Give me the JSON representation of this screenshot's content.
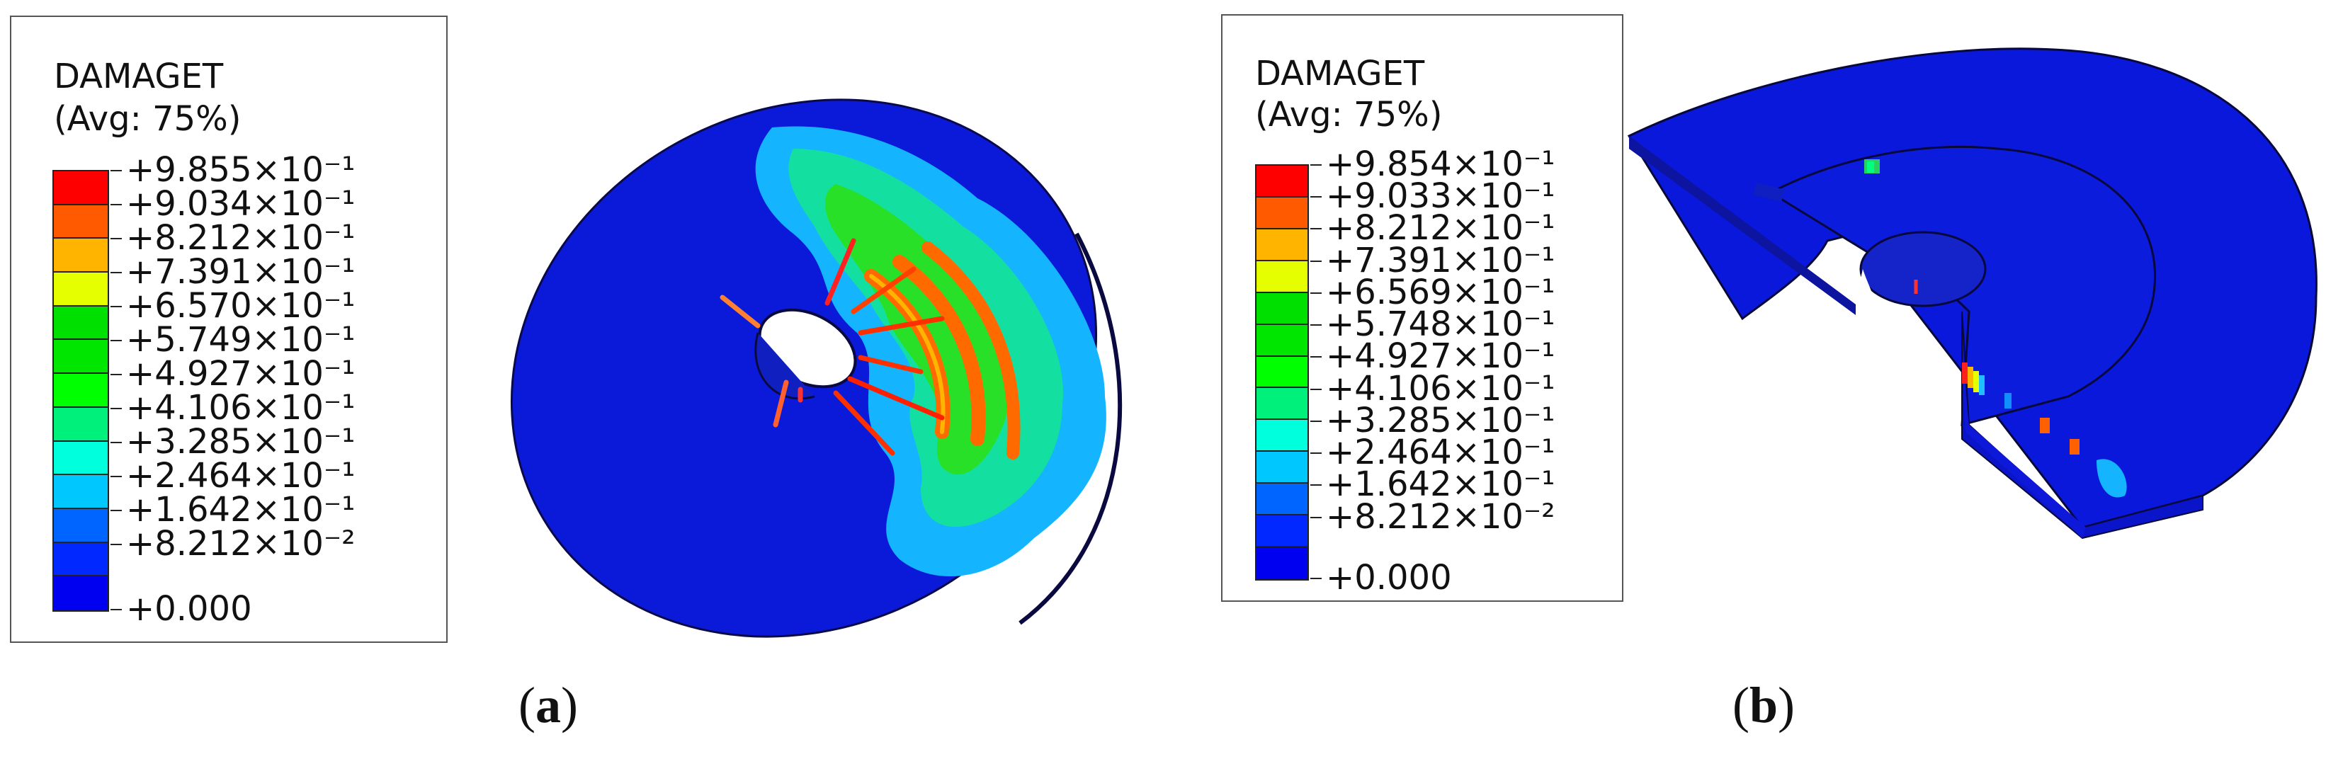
{
  "panel_a": {
    "legend": {
      "title": "DAMAGET",
      "subtitle": "(Avg: 75%)",
      "values": [
        "+9.855×10⁻¹",
        "+9.034×10⁻¹",
        "+8.212×10⁻¹",
        "+7.391×10⁻¹",
        "+6.570×10⁻¹",
        "+5.749×10⁻¹",
        "+4.927×10⁻¹",
        "+4.106×10⁻¹",
        "+3.285×10⁻¹",
        "+2.464×10⁻¹",
        "+1.642×10⁻¹",
        "+8.212×10⁻²",
        "+0.000"
      ]
    },
    "caption_open": "(",
    "caption_letter": "a",
    "caption_close": ")"
  },
  "panel_b": {
    "legend": {
      "title": "DAMAGET",
      "subtitle": "(Avg: 75%)",
      "values": [
        "+9.854×10⁻¹",
        "+9.033×10⁻¹",
        "+8.212×10⁻¹",
        "+7.391×10⁻¹",
        "+6.569×10⁻¹",
        "+5.748×10⁻¹",
        "+4.927×10⁻¹",
        "+4.106×10⁻¹",
        "+3.285×10⁻¹",
        "+2.464×10⁻¹",
        "+1.642×10⁻¹",
        "+8.212×10⁻²",
        "+0.000"
      ]
    },
    "caption_open": "(",
    "caption_letter": "b",
    "caption_close": ")"
  },
  "colormap": [
    "#ff0000",
    "#ff5a00",
    "#ffb400",
    "#e6ff00",
    "#00e000",
    "#00e600",
    "#00ff00",
    "#00f07c",
    "#00ffdc",
    "#00c8ff",
    "#0064ff",
    "#0028ff",
    "#0000f0"
  ]
}
